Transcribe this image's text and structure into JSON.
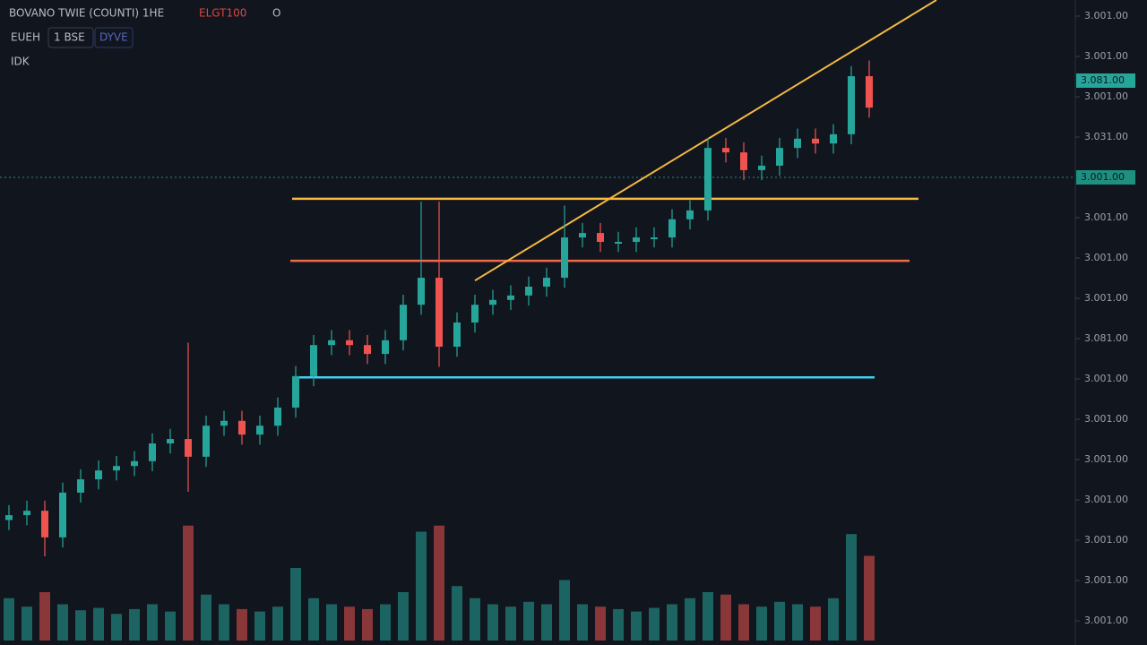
{
  "chart_data": {
    "type": "candlestick",
    "header": {
      "symbol": "BOVANO TWIE (COUNTI) 1HE",
      "price": "ELGT100",
      "flag": "O",
      "mode": "EUEH",
      "button1": "1 BSE",
      "button2": "DYVE",
      "indicator": "IDK"
    },
    "ylim": [
      -0.6,
      15.4
    ],
    "yticks": [
      {
        "value": 15,
        "label": "3.001.00"
      },
      {
        "value": 14,
        "label": "3.001.00"
      },
      {
        "value": 13,
        "label": "3.001.00"
      },
      {
        "value": 12,
        "label": "3.031.00"
      },
      {
        "value": 10,
        "label": "3.001.00"
      },
      {
        "value": 9,
        "label": "3.001.00"
      },
      {
        "value": 8,
        "label": "3.001.00"
      },
      {
        "value": 7,
        "label": "3.081.00"
      },
      {
        "value": 6,
        "label": "3.001.00"
      },
      {
        "value": 5,
        "label": "3.001.00"
      },
      {
        "value": 4,
        "label": "3.001.00"
      },
      {
        "value": 3,
        "label": "3.001.00"
      },
      {
        "value": 2,
        "label": "3.001.00"
      },
      {
        "value": 1,
        "label": "3.001.00"
      },
      {
        "value": 0,
        "label": "3.001.00"
      }
    ],
    "up_color": "#26a69a",
    "down_color": "#ef5350",
    "open": [
      2.5,
      2.62,
      2.73,
      2.07,
      3.18,
      3.51,
      3.73,
      3.84,
      3.96,
      4.4,
      4.51,
      4.07,
      4.84,
      4.96,
      4.62,
      4.84,
      5.29,
      6.07,
      6.84,
      6.96,
      6.84,
      6.62,
      6.96,
      7.84,
      8.51,
      6.8,
      7.4,
      7.84,
      7.96,
      8.07,
      8.29,
      8.51,
      9.51,
      9.62,
      9.4,
      9.4,
      9.51,
      9.51,
      9.96,
      10.18,
      11.73,
      11.62,
      11.18,
      11.29,
      11.73,
      11.96,
      11.84,
      12.07,
      13.51
    ],
    "high": [
      2.87,
      2.98,
      2.98,
      3.43,
      3.76,
      3.98,
      4.09,
      4.21,
      4.65,
      4.76,
      6.9,
      5.09,
      5.21,
      5.21,
      5.09,
      5.54,
      6.32,
      7.09,
      7.21,
      7.21,
      7.09,
      7.21,
      8.09,
      10.4,
      10.4,
      7.65,
      8.09,
      8.21,
      8.32,
      8.54,
      8.76,
      10.3,
      9.87,
      9.87,
      9.65,
      9.76,
      9.76,
      10.21,
      10.43,
      11.98,
      11.98,
      11.87,
      11.54,
      11.98,
      12.21,
      12.21,
      12.32,
      13.76,
      13.9
    ],
    "low": [
      2.25,
      2.37,
      1.6,
      1.82,
      2.93,
      3.26,
      3.48,
      3.59,
      3.71,
      4.15,
      3.2,
      3.82,
      4.59,
      4.37,
      4.37,
      4.59,
      5.04,
      5.82,
      6.59,
      6.59,
      6.37,
      6.37,
      6.71,
      7.59,
      6.3,
      6.55,
      7.15,
      7.59,
      7.71,
      7.82,
      8.04,
      8.26,
      9.26,
      9.15,
      9.15,
      9.15,
      9.26,
      9.26,
      9.71,
      9.93,
      11.37,
      10.93,
      10.93,
      11.04,
      11.48,
      11.59,
      11.59,
      11.82,
      12.48
    ],
    "close": [
      2.62,
      2.73,
      2.07,
      3.18,
      3.51,
      3.73,
      3.84,
      3.96,
      4.4,
      4.51,
      4.07,
      4.84,
      4.96,
      4.62,
      4.84,
      5.29,
      6.07,
      6.84,
      6.96,
      6.84,
      6.62,
      6.96,
      7.84,
      8.51,
      6.8,
      7.4,
      7.84,
      7.96,
      8.07,
      8.29,
      8.51,
      9.51,
      9.62,
      9.4,
      9.4,
      9.51,
      9.51,
      9.96,
      10.18,
      11.73,
      11.62,
      11.18,
      11.29,
      11.73,
      11.96,
      11.84,
      12.07,
      13.51,
      12.73
    ],
    "volume": [
      35,
      28,
      40,
      30,
      25,
      27,
      22,
      26,
      30,
      24,
      95,
      38,
      30,
      26,
      24,
      28,
      60,
      35,
      30,
      28,
      26,
      30,
      40,
      90,
      95,
      45,
      35,
      30,
      28,
      32,
      30,
      50,
      30,
      28,
      26,
      24,
      27,
      30,
      35,
      40,
      38,
      30,
      28,
      32,
      30,
      28,
      35,
      88,
      70
    ],
    "volume_lim": [
      0,
      100
    ],
    "levels": [
      {
        "value": 10.47,
        "color": "#f5b942"
      },
      {
        "value": 8.93,
        "color": "#f06a4a"
      },
      {
        "value": 6.04,
        "color": "#3fd0f0"
      }
    ],
    "last_line": {
      "value": 11.0,
      "color": "#1f8f80"
    },
    "trendline": {
      "values": [
        8.44,
        15.4
      ],
      "color": "#f5b942"
    },
    "price_tags": [
      {
        "value": 13.4,
        "label": "3.081.00",
        "color": "#26a69a"
      },
      {
        "value": 11.0,
        "label": "3.001.00",
        "color": "#1f8f80"
      }
    ]
  }
}
